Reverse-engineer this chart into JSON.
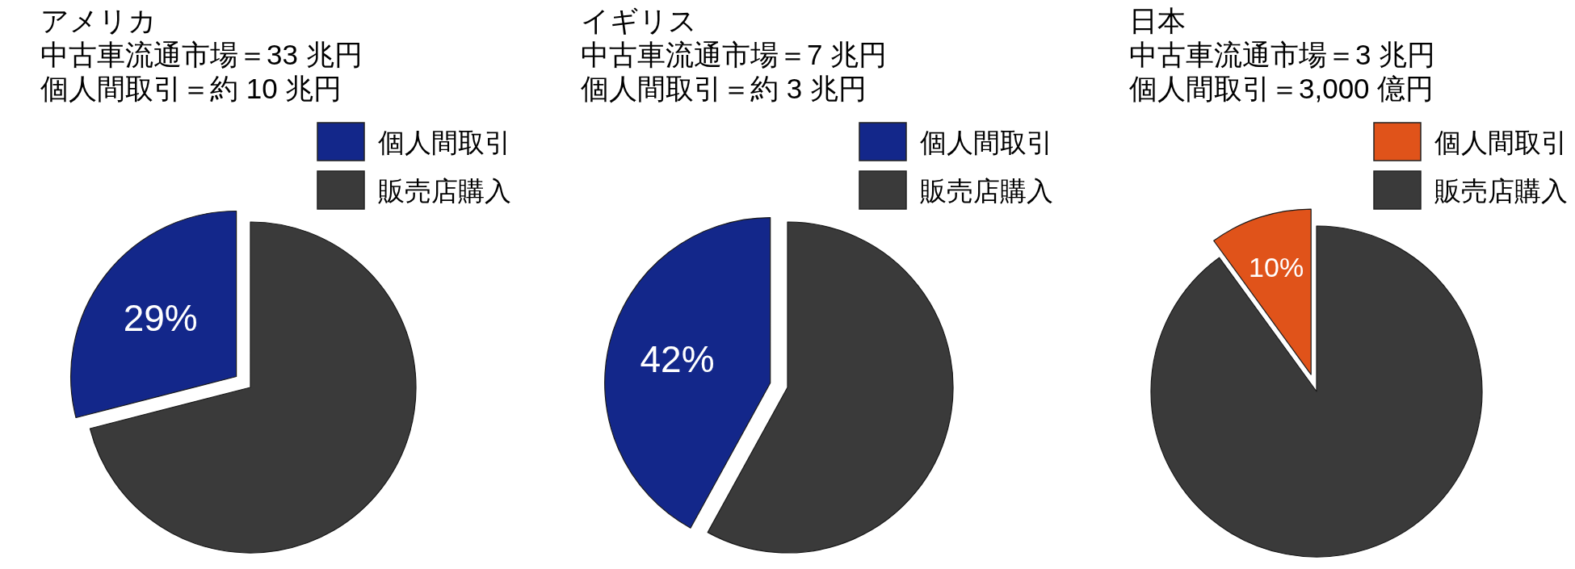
{
  "chart_data": [
    {
      "type": "pie",
      "title": "アメリカ",
      "subtitle": "中古車流通市場＝33 兆円",
      "annotations": [
        "個人間取引＝約 10 兆円"
      ],
      "categories": [
        "個人間取引",
        "販売店購入"
      ],
      "values": [
        29,
        71
      ],
      "colors": [
        "#13278a",
        "#3a3a3a"
      ],
      "value_labels": [
        "29%",
        null
      ],
      "legend": "top right"
    },
    {
      "type": "pie",
      "title": "イギリス",
      "subtitle": "中古車流通市場＝7 兆円",
      "annotations": [
        "個人間取引＝約 3 兆円"
      ],
      "categories": [
        "個人間取引",
        "販売店購入"
      ],
      "values": [
        42,
        58
      ],
      "colors": [
        "#13278a",
        "#3a3a3a"
      ],
      "value_labels": [
        "42%",
        null
      ],
      "legend": "top right"
    },
    {
      "type": "pie",
      "title": "日本",
      "subtitle": "中古車流通市場＝3 兆円",
      "annotations": [
        "個人間取引＝3,000 億円"
      ],
      "categories": [
        "個人間取引",
        "販売店購入"
      ],
      "values": [
        10,
        90
      ],
      "colors": [
        "#e0531a",
        "#3a3a3a"
      ],
      "value_labels": [
        "10%",
        null
      ],
      "legend": "top right"
    }
  ]
}
